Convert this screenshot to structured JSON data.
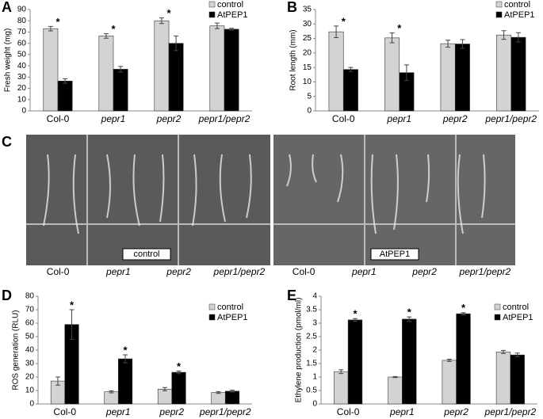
{
  "chart_data": [
    {
      "type": "bar",
      "label": "A",
      "y_label": "Fresh weight (mg)",
      "categories": [
        "Col-0",
        "pepr1",
        "pepr2",
        "pepr1/pepr2"
      ],
      "ylim": [
        0,
        90
      ],
      "yticks": [
        0,
        10,
        20,
        30,
        40,
        50,
        60,
        70,
        80,
        90
      ],
      "grid": false,
      "legend": "upper right",
      "series": [
        {
          "name": "control",
          "color": "#d3d3d3",
          "values": [
            73,
            66.5,
            80,
            75.5
          ],
          "errors": [
            2,
            2,
            2.5,
            2.5
          ],
          "significance": [
            "*",
            "*",
            "*",
            null
          ]
        },
        {
          "name": "AtPEP1",
          "color": "#000000",
          "values": [
            26.5,
            37,
            60,
            72.5
          ],
          "errors": [
            2,
            2.5,
            6.5,
            0.8
          ]
        }
      ]
    },
    {
      "type": "bar",
      "label": "B",
      "y_label": "Root length (mm)",
      "categories": [
        "Col-0",
        "pepr1",
        "pepr2",
        "pepr1/pepr2"
      ],
      "ylim": [
        0,
        35
      ],
      "yticks": [
        0,
        5,
        10,
        15,
        20,
        25,
        30,
        35
      ],
      "grid": false,
      "legend": "upper right",
      "series": [
        {
          "name": "control",
          "color": "#d3d3d3",
          "values": [
            27.3,
            25.2,
            23.2,
            26.2
          ],
          "errors": [
            2,
            1.7,
            1.2,
            1.5
          ],
          "significance": [
            "*",
            "*",
            null,
            null
          ]
        },
        {
          "name": "AtPEP1",
          "color": "#000000",
          "values": [
            14.3,
            13.2,
            23.1,
            25.4
          ],
          "errors": [
            0.7,
            2.7,
            1.5,
            1.6
          ]
        }
      ]
    },
    {
      "type": "bar",
      "label": "D",
      "y_label": "ROS generation (RLU)",
      "categories": [
        "Col-0",
        "pepr1",
        "pepr2",
        "pepr1/pepr2"
      ],
      "ylim": [
        0,
        80
      ],
      "yticks": [
        0,
        10,
        20,
        30,
        40,
        50,
        60,
        70,
        80
      ],
      "grid": false,
      "legend": "upper right",
      "series": [
        {
          "name": "control",
          "color": "#d3d3d3",
          "values": [
            17,
            9,
            11,
            8.5
          ],
          "errors": [
            3,
            0.8,
            1.2,
            0.7
          ]
        },
        {
          "name": "AtPEP1",
          "color": "#000000",
          "values": [
            59,
            33.5,
            23.5,
            9.5
          ],
          "errors": [
            11,
            3,
            1,
            0.7
          ],
          "significance": [
            "*",
            "*",
            "*",
            null
          ]
        }
      ]
    },
    {
      "type": "bar",
      "label": "E",
      "y_label": "Ethylene production (pmol/ml)",
      "categories": [
        "Col-0",
        "pepr1",
        "pepr2",
        "pepr1/pepr2"
      ],
      "ylim": [
        0,
        4
      ],
      "yticks": [
        0,
        0.5,
        1,
        1.5,
        2,
        2.5,
        3,
        3.5,
        4
      ],
      "grid": false,
      "legend": "upper right",
      "series": [
        {
          "name": "control",
          "color": "#d3d3d3",
          "values": [
            1.2,
            1.0,
            1.62,
            1.93
          ],
          "errors": [
            0.07,
            0.02,
            0.04,
            0.06
          ]
        },
        {
          "name": "AtPEP1",
          "color": "#000000",
          "values": [
            3.12,
            3.15,
            3.35,
            1.82
          ],
          "errors": [
            0.05,
            0.08,
            0.04,
            0.07
          ],
          "significance": [
            "*",
            "*",
            "*",
            null
          ]
        }
      ]
    }
  ],
  "photo_panel": {
    "label": "C",
    "left_caption": "control",
    "right_caption": "AtPEP1",
    "left_categories": [
      "Col-0",
      "pepr1",
      "pepr2",
      "pepr1/pepr2"
    ],
    "right_categories": [
      "Col-0",
      "pepr1",
      "pepr2",
      "pepr1/pepr2"
    ]
  }
}
